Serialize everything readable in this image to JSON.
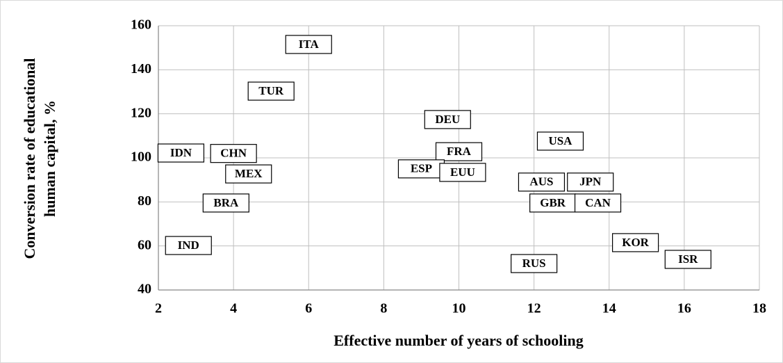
{
  "chart_data": {
    "type": "scatter",
    "xlabel": "Effective number of years of schooling",
    "ylabel": [
      "Conversion rate of educational",
      "human capital, %"
    ],
    "labels": [
      "ITA",
      "TUR",
      "DEU",
      "IDN",
      "CHN",
      "MEX",
      "FRA",
      "ESP",
      "EUU",
      "USA",
      "AUS",
      "JPN",
      "BRA",
      "GBR",
      "CAN",
      "IND",
      "KOR",
      "RUS",
      "ISR"
    ],
    "x": [
      6.0,
      5.0,
      9.7,
      2.6,
      4.0,
      4.4,
      10.0,
      9.0,
      10.1,
      12.7,
      12.2,
      13.5,
      3.8,
      12.5,
      13.7,
      2.8,
      14.7,
      12.0,
      16.1
    ],
    "values": [
      151.5,
      130.3,
      117.4,
      102.2,
      102,
      92.7,
      102.8,
      95,
      93.4,
      107.6,
      89,
      89,
      79.5,
      79.5,
      79.5,
      60.2,
      61.5,
      52,
      53.9
    ],
    "xlim": [
      2,
      18
    ],
    "xticks": [
      2,
      4,
      6,
      8,
      10,
      12,
      14,
      16,
      18
    ],
    "ylim": [
      40,
      160
    ],
    "yticks": [
      40,
      60,
      80,
      100,
      120,
      140,
      160
    ],
    "grid": true
  }
}
